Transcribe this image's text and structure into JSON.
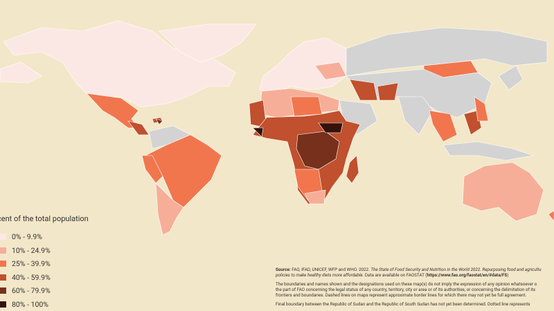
{
  "legend": {
    "title": "cent of the total population",
    "items": [
      {
        "label": "0% -  9.9%",
        "color": "#fbe8e4"
      },
      {
        "label": "10% - 24.9%",
        "color": "#f6ae98"
      },
      {
        "label": "25% - 39.9%",
        "color": "#f1764d"
      },
      {
        "label": "40% - 59.9%",
        "color": "#c0502e"
      },
      {
        "label": "60% - 79.9%",
        "color": "#77301b"
      },
      {
        "label": "80% - 100%",
        "color": "#35130a"
      }
    ]
  },
  "notes": {
    "source": {
      "label": "Source:",
      "text": " FAO, IFAD, UNICEF, WFP and WHO. 2022. ",
      "title": "The State of Food Security and Nutrition in the World 2022. Repurposing food and agricultu",
      "title_2": "policies to make healthy diets more affordable.",
      "text_2": " Data are available on FAOSTAT (",
      "url": "https://www.fao.org/faostat/en/#data/FS",
      "text_3": ")"
    },
    "disclaimer": [
      "The boundaries and names shown and the designations used on these map(s) do not imply the expression of any opinion whatsoever o",
      "the part of FAO concerning the legal status of any country, territory, city or area or of its authorities, or concerning the delimitation of its",
      "frontiers and boundaries. Dashed lines on maps represent approximate border lines for which there may not yet be full agreement."
    ],
    "sudan": "Final boundary between the Republic of Sudan and the Republic of South Sudan has not yet been determined. Dotted line represents"
  }
}
